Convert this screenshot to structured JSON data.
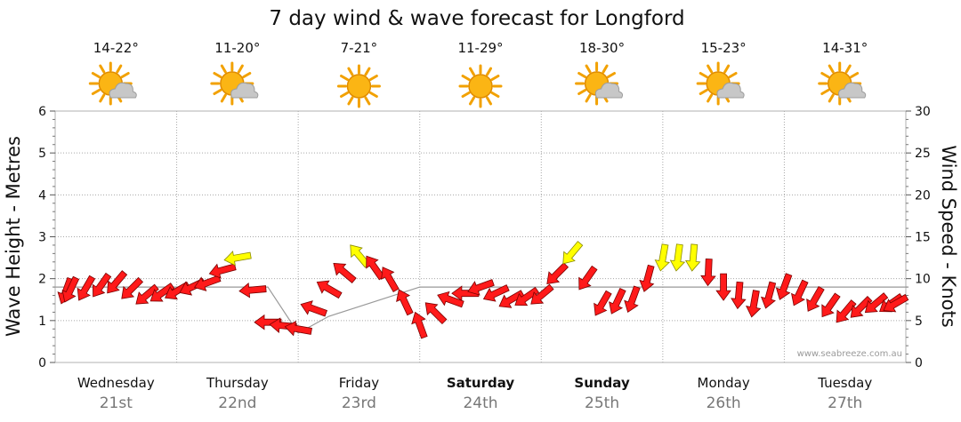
{
  "chart_data": {
    "type": "line",
    "title": "7 day wind & wave forecast for Longford",
    "ylabel_left": "Wave Height - Metres",
    "ylabel_right": "Wind Speed - Knots",
    "ylim_left": [
      0,
      6
    ],
    "ylim_right": [
      0,
      30
    ],
    "yticks_left": [
      "0",
      "1",
      "2",
      "3",
      "4",
      "5",
      "6"
    ],
    "yticks_right": [
      "0",
      "5",
      "10",
      "15",
      "20",
      "25",
      "30"
    ],
    "grid": true,
    "credit": "www.seabreeze.com.au",
    "days": [
      {
        "name": "Wednesday",
        "date": "21st",
        "temp": "14-22°",
        "icon": "partly-cloudy-icon",
        "bold": false
      },
      {
        "name": "Thursday",
        "date": "22nd",
        "temp": "11-20°",
        "icon": "partly-cloudy-icon",
        "bold": false
      },
      {
        "name": "Friday",
        "date": "23rd",
        "temp": "7-21°",
        "icon": "sunny-icon",
        "bold": false
      },
      {
        "name": "Saturday",
        "date": "24th",
        "temp": "11-29°",
        "icon": "sunny-icon",
        "bold": true
      },
      {
        "name": "Sunday",
        "date": "25th",
        "temp": "18-30°",
        "icon": "partly-cloudy-icon",
        "bold": true
      },
      {
        "name": "Monday",
        "date": "26th",
        "temp": "15-23°",
        "icon": "partly-cloudy-icon",
        "bold": false
      },
      {
        "name": "Tuesday",
        "date": "27th",
        "temp": "14-31°",
        "icon": "partly-cloudy-icon",
        "bold": false
      }
    ],
    "series": [
      {
        "name": "Wind Speed (knots)",
        "x_days": [
          0.0,
          0.25,
          0.5,
          0.75,
          1.0,
          1.25,
          1.5,
          1.75,
          2.0,
          2.25,
          2.5,
          2.75,
          3.0,
          3.25,
          3.5,
          3.75,
          4.0,
          4.25,
          4.5,
          4.75,
          5.0,
          5.25,
          5.5,
          5.75,
          6.0,
          6.25,
          6.5,
          6.75,
          7.0
        ],
        "values": [
          8.5,
          8.8,
          9.5,
          8.0,
          8.5,
          9.5,
          12.5,
          4.8,
          4.0,
          8.8,
          12.8,
          10.0,
          4.5,
          7.5,
          9.0,
          7.5,
          8.0,
          13.0,
          7.0,
          7.5,
          12.5,
          12.5,
          9.0,
          7.0,
          9.0,
          7.5,
          6.0,
          7.0,
          7.0
        ],
        "direction_deg": [
          200,
          210,
          220,
          230,
          240,
          250,
          260,
          270,
          280,
          300,
          320,
          330,
          340,
          290,
          250,
          240,
          230,
          220,
          210,
          200,
          190,
          185,
          180,
          190,
          200,
          210,
          220,
          230,
          240
        ]
      },
      {
        "name": "Wave Height (m)",
        "x_days": [
          0.0,
          1.75,
          2.0,
          2.25,
          3.0,
          7.0
        ],
        "values": [
          1.8,
          1.8,
          0.7,
          1.1,
          1.8,
          1.8
        ]
      }
    ],
    "wind_color_scale": [
      {
        "max_knots": 12,
        "color": "#ff1a1a"
      },
      {
        "max_knots": 30,
        "color": "#ffff00"
      }
    ]
  }
}
